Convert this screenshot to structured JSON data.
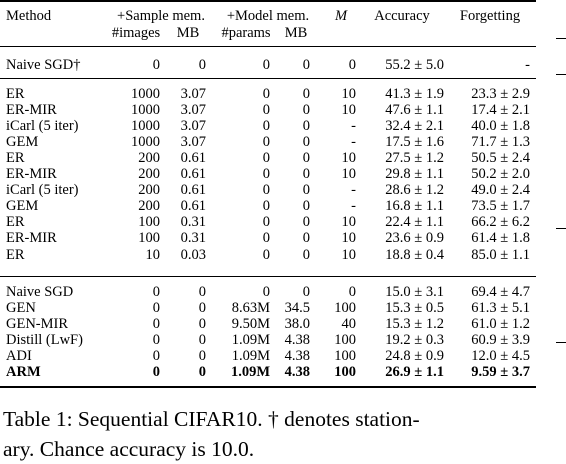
{
  "table": {
    "header_top": [
      "Method",
      "+Sample mem.",
      "+Model mem.",
      "M",
      "Accuracy",
      "Forgetting"
    ],
    "header_sub": [
      "#images",
      "MB",
      "#params",
      "MB"
    ],
    "groups": [
      {
        "rows": [
          [
            "Naive SGD†",
            "0",
            "0",
            "0",
            "0",
            "0",
            "55.2 ± 5.0",
            "-"
          ]
        ]
      },
      {
        "rows": [
          [
            "ER",
            "1000",
            "3.07",
            "0",
            "0",
            "10",
            "41.3 ± 1.9",
            "23.3 ± 2.9"
          ],
          [
            "ER-MIR",
            "1000",
            "3.07",
            "0",
            "0",
            "10",
            "47.6 ± 1.1",
            "17.4 ± 2.1"
          ],
          [
            "iCarl (5 iter)",
            "1000",
            "3.07",
            "0",
            "0",
            "-",
            "32.4 ± 2.1",
            "40.0 ± 1.8"
          ],
          [
            "GEM",
            "1000",
            "3.07",
            "0",
            "0",
            "-",
            "17.5 ± 1.6",
            "71.7 ± 1.3"
          ],
          [
            "ER",
            "200",
            "0.61",
            "0",
            "0",
            "10",
            "27.5 ± 1.2",
            "50.5 ± 2.4"
          ],
          [
            "ER-MIR",
            "200",
            "0.61",
            "0",
            "0",
            "10",
            "29.8 ± 1.1",
            "50.2 ± 2.0"
          ],
          [
            "iCarl (5 iter)",
            "200",
            "0.61",
            "0",
            "0",
            "-",
            "28.6 ± 1.2",
            "49.0 ± 2.4"
          ],
          [
            "GEM",
            "200",
            "0.61",
            "0",
            "0",
            "-",
            "16.8 ± 1.1",
            "73.5 ± 1.7"
          ],
          [
            "ER",
            "100",
            "0.31",
            "0",
            "0",
            "10",
            "22.4 ± 1.1",
            "66.2 ± 6.2"
          ],
          [
            "ER-MIR",
            "100",
            "0.31",
            "0",
            "0",
            "10",
            "23.6 ± 0.9",
            "61.4 ± 1.8"
          ],
          [
            "ER",
            "10",
            "0.03",
            "0",
            "0",
            "10",
            "18.8 ± 0.4",
            "85.0 ± 1.1"
          ]
        ]
      },
      {
        "rows": [
          [
            "Naive SGD",
            "0",
            "0",
            "0",
            "0",
            "0",
            "15.0 ± 3.1",
            "69.4 ± 4.7"
          ],
          [
            "GEN",
            "0",
            "0",
            "8.63M",
            "34.5",
            "100",
            "15.3 ± 0.5",
            "61.3 ± 5.1"
          ],
          [
            "GEN-MIR",
            "0",
            "0",
            "9.50M",
            "38.0",
            "40",
            "15.3 ± 1.2",
            "61.0 ± 1.2"
          ],
          [
            "Distill (LwF)",
            "0",
            "0",
            "1.09M",
            "4.38",
            "100",
            "19.2 ± 0.3",
            "60.9 ± 3.9"
          ],
          [
            "ADI",
            "0",
            "0",
            "1.09M",
            "4.38",
            "100",
            "24.8 ± 0.9",
            "12.0 ± 4.5"
          ],
          [
            "ARM",
            "0",
            "0",
            "1.09M",
            "4.38",
            "100",
            "26.9 ± 1.1",
            "9.59 ± 3.7"
          ]
        ]
      }
    ]
  },
  "caption": {
    "line1": "Table 1: Sequential CIFAR10. † denotes station-",
    "line2": "ary. Chance accuracy is 10.0."
  }
}
